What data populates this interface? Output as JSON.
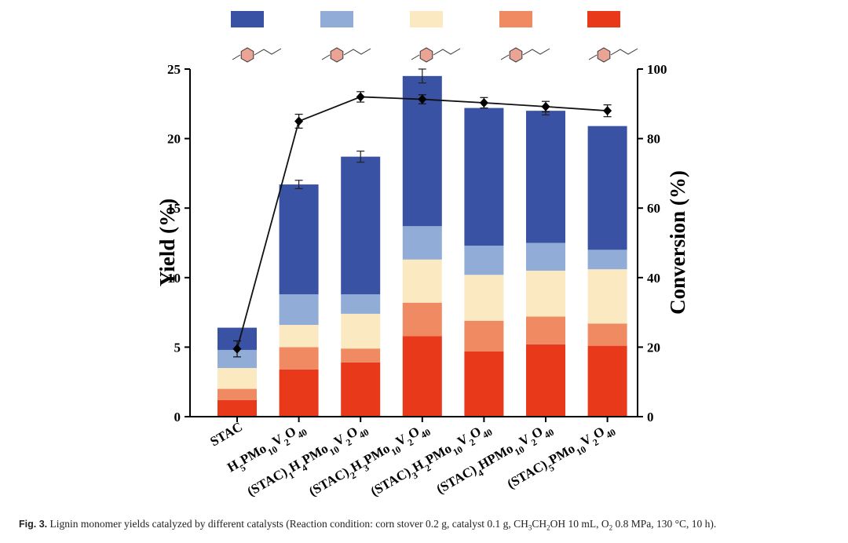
{
  "chart_data": {
    "type": "bar",
    "stacked": true,
    "categories": [
      "STAC",
      "H5PMo10V2O40",
      "(STAC)1H4PMo10V2O40",
      "(STAC)2H3PMo10V2O40",
      "(STAC)3H2PMo10V2O40",
      "(STAC)4HPMo10V2O40",
      "(STAC)5PMo10V2O40"
    ],
    "category_labels": [
      [
        {
          "t": "STAC"
        }
      ],
      [
        {
          "t": "H"
        },
        {
          "t": "5",
          "s": 1
        },
        {
          "t": "PMo"
        },
        {
          "t": "10",
          "s": 1
        },
        {
          "t": "V"
        },
        {
          "t": "2",
          "s": 1
        },
        {
          "t": "O"
        },
        {
          "t": "40",
          "s": 1
        }
      ],
      [
        {
          "t": "(STAC)"
        },
        {
          "t": "1",
          "s": 1
        },
        {
          "t": "H"
        },
        {
          "t": "4",
          "s": 1
        },
        {
          "t": "PMo"
        },
        {
          "t": "10",
          "s": 1
        },
        {
          "t": "V"
        },
        {
          "t": "2",
          "s": 1
        },
        {
          "t": "O"
        },
        {
          "t": "40",
          "s": 1
        }
      ],
      [
        {
          "t": "(STAC)"
        },
        {
          "t": "2",
          "s": 1
        },
        {
          "t": "H"
        },
        {
          "t": "3",
          "s": 1
        },
        {
          "t": "PMo"
        },
        {
          "t": "10",
          "s": 1
        },
        {
          "t": "V"
        },
        {
          "t": "2",
          "s": 1
        },
        {
          "t": "O"
        },
        {
          "t": "40",
          "s": 1
        }
      ],
      [
        {
          "t": "(STAC)"
        },
        {
          "t": "3",
          "s": 1
        },
        {
          "t": "H"
        },
        {
          "t": "2",
          "s": 1
        },
        {
          "t": "PMo"
        },
        {
          "t": "10",
          "s": 1
        },
        {
          "t": "V"
        },
        {
          "t": "2",
          "s": 1
        },
        {
          "t": "O"
        },
        {
          "t": "40",
          "s": 1
        }
      ],
      [
        {
          "t": "(STAC)"
        },
        {
          "t": "4",
          "s": 1
        },
        {
          "t": "HPMo"
        },
        {
          "t": "10",
          "s": 1
        },
        {
          "t": "V"
        },
        {
          "t": "2",
          "s": 1
        },
        {
          "t": "O"
        },
        {
          "t": "40",
          "s": 1
        }
      ],
      [
        {
          "t": "(STAC)"
        },
        {
          "t": "5",
          "s": 1
        },
        {
          "t": "PMo"
        },
        {
          "t": "10",
          "s": 1
        },
        {
          "t": "V"
        },
        {
          "t": "2",
          "s": 1
        },
        {
          "t": "O"
        },
        {
          "t": "40",
          "s": 1
        }
      ]
    ],
    "series": [
      {
        "color": "#e8391a",
        "values": [
          1.2,
          3.4,
          3.9,
          5.8,
          4.7,
          5.2,
          5.1
        ]
      },
      {
        "color": "#ef8a62",
        "values": [
          0.8,
          1.6,
          1.0,
          2.4,
          2.2,
          2.0,
          1.6
        ]
      },
      {
        "color": "#fbe9c2",
        "values": [
          1.5,
          1.6,
          2.5,
          3.1,
          3.3,
          3.3,
          3.9
        ]
      },
      {
        "color": "#91acd6",
        "values": [
          1.3,
          2.2,
          1.4,
          2.4,
          2.1,
          2.0,
          1.4
        ]
      },
      {
        "color": "#3a52a3",
        "values": [
          1.6,
          7.9,
          9.9,
          10.8,
          9.9,
          9.5,
          8.9
        ]
      }
    ],
    "total_error": [
      null,
      0.3,
      0.4,
      0.5,
      null,
      0.3,
      null
    ],
    "conversion": {
      "values": [
        19.5,
        85,
        92,
        91.3,
        90.3,
        89.2,
        88
      ],
      "errors": [
        2.3,
        2.0,
        1.5,
        1.3,
        1.5,
        1.5,
        1.7
      ]
    },
    "ylabel": "Yield (%)",
    "y2label": "Conversion (%)",
    "ylim": [
      0,
      25
    ],
    "y2lim": [
      0,
      100
    ],
    "yticks": [
      0,
      5,
      10,
      15,
      20,
      25
    ],
    "y2ticks": [
      0,
      20,
      40,
      60,
      80,
      100
    ],
    "legend_position": "top",
    "grid": false
  },
  "caption": {
    "fig_label": "Fig. 3.",
    "parts": [
      {
        "t": " Lignin monomer yields catalyzed by different catalysts (Reaction condition: corn stover 0.2 g, catalyst 0.1 g, CH"
      },
      {
        "t": "3",
        "s": 1
      },
      {
        "t": "CH"
      },
      {
        "t": "2",
        "s": 1
      },
      {
        "t": "OH 10 mL, O"
      },
      {
        "t": "2",
        "s": 1
      },
      {
        "t": " 0.8 MPa, 130 °C, 10 h)."
      }
    ]
  }
}
